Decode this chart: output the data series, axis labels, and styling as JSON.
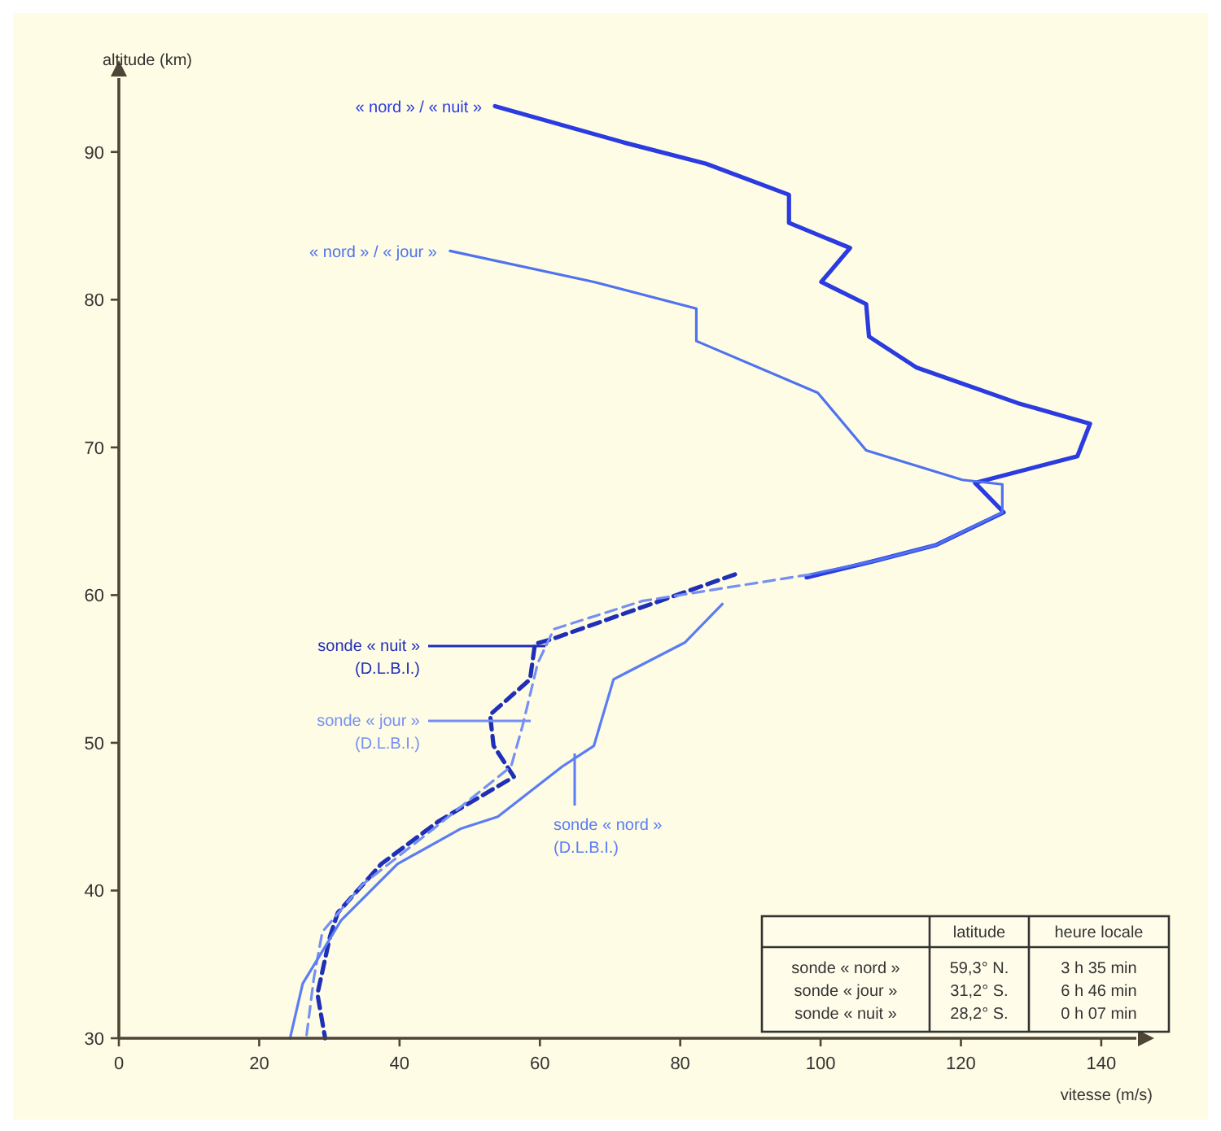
{
  "chart_data": {
    "type": "line",
    "xlabel": "vitesse  (m/s)",
    "ylabel": "altitude (km)",
    "xlim": [
      0,
      145
    ],
    "ylim": [
      30,
      95
    ],
    "xticks": [
      0,
      20,
      40,
      60,
      80,
      100,
      120,
      140
    ],
    "yticks": [
      30,
      40,
      50,
      60,
      70,
      80,
      90
    ],
    "grid": false,
    "series": [
      {
        "name": "« nord » / « nuit »",
        "color": "#2a3be0",
        "line_style": "solid",
        "x": [
          53.6,
          72.3,
          83.7,
          95.5,
          95.5,
          104.2,
          100.1,
          106.5,
          106.9,
          113.7,
          128.1,
          138.4,
          136.6,
          122,
          126.1,
          116.5,
          107.6,
          98
        ],
        "values": [
          93.1,
          90.6,
          89.2,
          87.1,
          85.2,
          83.5,
          81.2,
          79.7,
          77.5,
          75.4,
          73,
          71.6,
          69.4,
          67.6,
          65.6,
          63.4,
          62.3,
          61.2
        ]
      },
      {
        "name": "« nord » / « jour »",
        "color": "#4f72ee",
        "line_style": "solid",
        "x": [
          47.2,
          67.7,
          82.3,
          82.3,
          99.6,
          106.5,
          120.2,
          125.9,
          125.9,
          116.5,
          107.6,
          98.5
        ],
        "values": [
          83.3,
          81.2,
          79.4,
          77.2,
          73.7,
          69.8,
          67.8,
          67.5,
          65.6,
          63.4,
          62.3,
          61.4
        ]
      },
      {
        "name": "sonde « nuit » (D.L.B.I.)",
        "color": "#1f2fb8",
        "line_style": "dashed",
        "x": [
          87.8,
          61.6,
          59.3,
          58.6,
          52.9,
          53.4,
          56.3,
          45.6,
          37.4,
          31.2,
          30.1,
          28.3,
          29.4
        ],
        "values": [
          61.4,
          57,
          56.7,
          54.3,
          51.9,
          49.8,
          47.7,
          44.7,
          41.8,
          38.5,
          36.9,
          33,
          30
        ]
      },
      {
        "name": "sonde « jour » (D.L.B.I.)",
        "color": "#7590f4",
        "line_style": "dashed",
        "x": [
          98.5,
          74.6,
          62,
          59.7,
          57.5,
          55.9,
          44.9,
          34.7,
          29,
          27.8,
          26.7
        ],
        "values": [
          61.4,
          59.6,
          57.7,
          55.4,
          51.1,
          48.4,
          44.2,
          40.4,
          37.2,
          34.1,
          30
        ]
      },
      {
        "name": "sonde « nord » (D.L.B.I.)",
        "color": "#5a7df5",
        "line_style": "solid",
        "x": [
          86,
          80.7,
          70.5,
          67.7,
          63.2,
          54,
          48.8,
          39.7,
          31.7,
          26.2,
          24.4
        ],
        "values": [
          59.4,
          56.8,
          54.3,
          49.8,
          48.4,
          45,
          44.2,
          41.8,
          38,
          33.7,
          30
        ]
      }
    ],
    "annotations": [
      "latitude",
      "heure locale",
      "sonde « nord »",
      "59,3° N.",
      "3 h 35 min",
      "sonde « jour »",
      "31,2° S.",
      "6 h 46 min",
      "sonde « nuit »",
      "28,2° S.",
      "0 h 07 min"
    ]
  }
}
